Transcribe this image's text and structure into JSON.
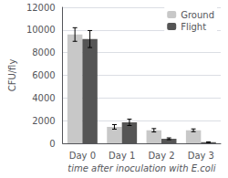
{
  "chart_data": {
    "type": "bar",
    "categories": [
      "Day 0",
      "Day 1",
      "Day 2",
      "Day 3"
    ],
    "series": [
      {
        "name": "Ground",
        "color": "#c8c8c8",
        "values": [
          9600,
          1450,
          1150,
          1150
        ],
        "errors": [
          600,
          200,
          150,
          120
        ]
      },
      {
        "name": "Flight",
        "color": "#555555",
        "values": [
          9200,
          1850,
          400,
          100
        ],
        "errors": [
          750,
          280,
          80,
          30
        ]
      }
    ],
    "xlabel": "time after inoculation with E.coli",
    "ylabel": "CFU/fly",
    "ylim": [
      0,
      12000
    ],
    "yticks": [
      0,
      2000,
      4000,
      6000,
      8000,
      10000,
      12000
    ],
    "grid": true,
    "legend": "upper right"
  }
}
